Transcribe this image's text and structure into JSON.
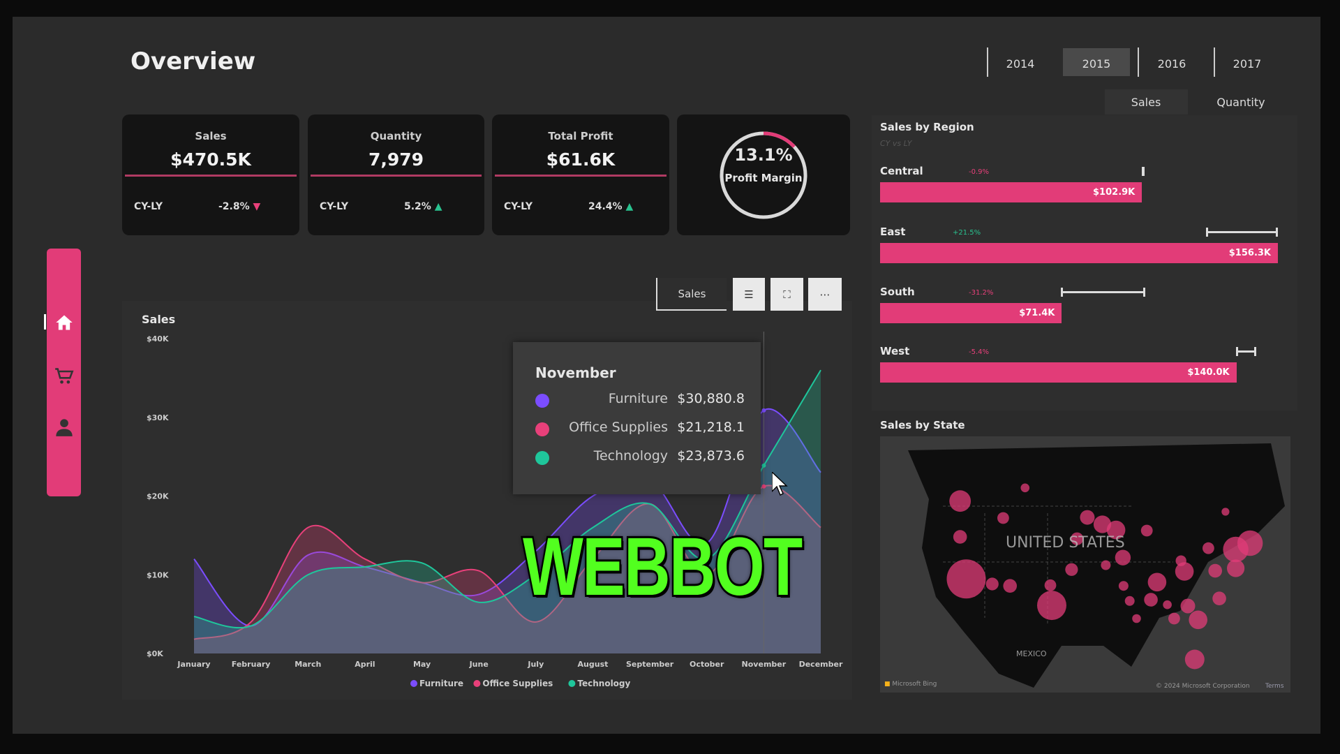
{
  "header": {
    "title": "Overview",
    "years": [
      "2014",
      "2015",
      "2016",
      "2017"
    ],
    "selected_year": "2015",
    "measure_tabs": [
      "Sales",
      "Quantity"
    ],
    "selected_measure": "Sales"
  },
  "kpis": [
    {
      "label": "Sales",
      "value": "$470.5K",
      "cy_label": "CY-LY",
      "change": "-2.8%",
      "direction": "down"
    },
    {
      "label": "Quantity",
      "value": "7,979",
      "cy_label": "CY-LY",
      "change": "5.2%",
      "direction": "up"
    },
    {
      "label": "Total Profit",
      "value": "$61.6K",
      "cy_label": "CY-LY",
      "change": "24.4%",
      "direction": "up"
    }
  ],
  "profit_margin": {
    "value": "13.1%",
    "label": "Profit Margin",
    "fraction": 0.131
  },
  "sidebar": {
    "items": [
      {
        "icon": "home-icon"
      },
      {
        "icon": "cart-icon"
      },
      {
        "icon": "user-icon"
      }
    ]
  },
  "chart_toolbar": {
    "label": "Sales"
  },
  "colors": {
    "accent": "#e23c78",
    "furniture": "#7b4dff",
    "office_supplies": "#e8407a",
    "technology": "#1fc69b",
    "watermark": "#52ff1f"
  },
  "chart_data": {
    "type": "area",
    "title": "Sales",
    "categories": [
      "January",
      "February",
      "March",
      "April",
      "May",
      "June",
      "July",
      "August",
      "September",
      "October",
      "November",
      "December"
    ],
    "yticks": [
      "$0K",
      "$10K",
      "$20K",
      "$30K",
      "$40K"
    ],
    "ylim": [
      0,
      40000
    ],
    "series": [
      {
        "name": "Furniture",
        "values": [
          12000,
          3500,
          12500,
          11000,
          9000,
          7500,
          13000,
          20000,
          22000,
          14000,
          30880.8,
          23000
        ]
      },
      {
        "name": "Office Supplies",
        "values": [
          1800,
          4000,
          16000,
          12000,
          9000,
          10500,
          4000,
          12000,
          19000,
          10000,
          21218.1,
          16000
        ]
      },
      {
        "name": "Technology",
        "values": [
          4700,
          3500,
          10000,
          11000,
          11500,
          6500,
          10000,
          16000,
          19000,
          12000,
          23873.6,
          36000
        ]
      }
    ],
    "legend": "bottom"
  },
  "tooltip": {
    "title": "November",
    "rows": [
      {
        "name": "Furniture",
        "value": "$30,880.8"
      },
      {
        "name": "Office Supplies",
        "value": "$21,218.1"
      },
      {
        "name": "Technology",
        "value": "$23,873.6"
      }
    ]
  },
  "watermark": "WEBBOT",
  "region": {
    "title": "Sales by Region",
    "subtitle": "CY vs LY",
    "items": [
      {
        "name": "Central",
        "change": "-0.9%",
        "direction": "down",
        "value": "$102.9K",
        "amount": 102.9
      },
      {
        "name": "East",
        "change": "+21.5%",
        "direction": "up",
        "value": "$156.3K",
        "amount": 156.3
      },
      {
        "name": "South",
        "change": "-31.2%",
        "direction": "down",
        "value": "$71.4K",
        "amount": 71.4
      },
      {
        "name": "West",
        "change": "-5.4%",
        "direction": "down",
        "value": "$140.0K",
        "amount": 140.0
      }
    ]
  },
  "map": {
    "title": "Sales by State",
    "country_label": "UNITED STATES",
    "mexico_label": "MEXICO",
    "bing": "Microsoft Bing",
    "copyright": "© 2024 Microsoft Corporation",
    "terms": "Terms"
  }
}
